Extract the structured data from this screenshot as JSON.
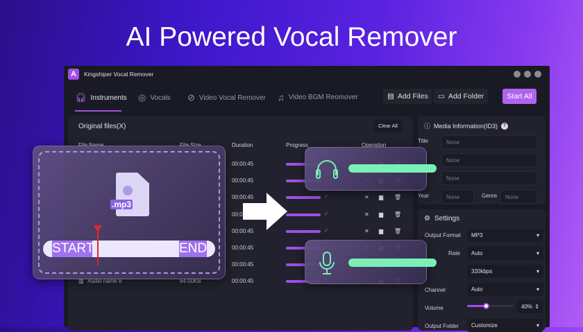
{
  "headline": "AI Powered Vocal Remover",
  "app": {
    "title": "Kingshiper Vocal Remover",
    "logo_letter": "A"
  },
  "tabs": [
    {
      "label": "Instruments",
      "active": true
    },
    {
      "label": "Vocals"
    },
    {
      "label": "Video Vocal Remover"
    },
    {
      "label": "Video BGM Reomover"
    }
  ],
  "toolbar": {
    "add_files": "Add Files",
    "add_folder": "Add Folder",
    "start_all": "Start All"
  },
  "files": {
    "title": "Original files(X)",
    "clear_all": "Clear All",
    "columns": [
      "File Name",
      "File Size",
      "Duration",
      "Progress",
      "Operation"
    ],
    "rows": [
      {
        "duration": "00:00:45"
      },
      {
        "duration": "00:00:45"
      },
      {
        "duration": "00:00:45"
      },
      {
        "duration": "00:00:45"
      },
      {
        "duration": "00:00:45"
      },
      {
        "duration": "00:00:45"
      },
      {
        "duration": "00:00:45"
      },
      {
        "name": "Audio name 8",
        "size": "64.00KB",
        "duration": "00:00:45"
      }
    ]
  },
  "media": {
    "title": "Media Information(ID3)",
    "title_label": "Title",
    "placeholder": "None",
    "year_label": "Year",
    "genre_label": "Genre"
  },
  "settings": {
    "title": "Settings",
    "output_format_label": "Output Format",
    "output_format": "MP3",
    "sample_rate_label": "Rate",
    "sample_rate": "Auto",
    "bitrate": "320kbps",
    "channel_label": "Channel",
    "channel": "Auto",
    "volume_label": "Volume",
    "volume": "40%",
    "volume_fraction": 0.4,
    "output_folder_label": "Output Folder",
    "output_folder": "Customize"
  },
  "overlay": {
    "file_ext": ".mp3",
    "start": "START",
    "end": "END"
  },
  "colors": {
    "accent": "#a24ee6",
    "green": "#7af0b8",
    "playhead": "#e02a2a"
  }
}
